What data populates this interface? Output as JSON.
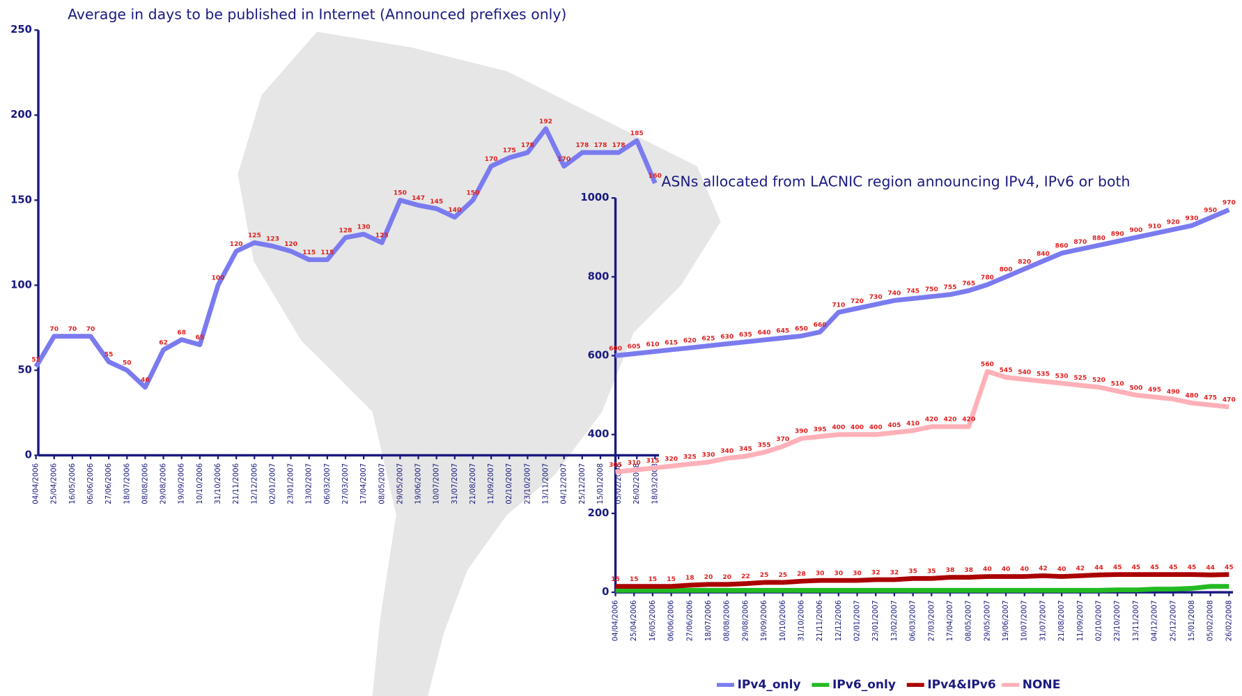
{
  "chart_data": [
    {
      "type": "line",
      "title": "Average in days to be published in Internet  (Announced prefixes only)",
      "categories": [
        "04/04/2006",
        "25/04/2006",
        "16/05/2006",
        "06/06/2006",
        "27/06/2006",
        "18/07/2006",
        "08/08/2006",
        "29/08/2006",
        "19/09/2006",
        "10/10/2006",
        "31/10/2006",
        "21/11/2006",
        "12/12/2006",
        "02/01/2007",
        "23/01/2007",
        "13/02/2007",
        "06/03/2007",
        "27/03/2007",
        "17/04/2007",
        "08/05/2007",
        "29/05/2007",
        "19/06/2007",
        "10/07/2007",
        "31/07/2007",
        "21/08/2007",
        "11/09/2007",
        "02/10/2007",
        "23/10/2007",
        "13/11/2007",
        "04/12/2007",
        "25/12/2007",
        "15/01/2008",
        "05/02/2008",
        "26/02/2008",
        "18/03/2008"
      ],
      "values": [
        52,
        70,
        70,
        70,
        55,
        50,
        40,
        62,
        68,
        65,
        100,
        120,
        125,
        123,
        120,
        115,
        115,
        128,
        130,
        125,
        150,
        147,
        145,
        140,
        150,
        170,
        175,
        178,
        192,
        170,
        178,
        178,
        178,
        185,
        160
      ],
      "color": "#7b7bf0",
      "ylim": [
        0,
        250
      ],
      "yticks": [
        0,
        50,
        100,
        150,
        200,
        250
      ]
    },
    {
      "type": "line",
      "title": "ASNs allocated from LACNIC region announcing IPv4, IPv6 or both",
      "categories": [
        "04/04/2006",
        "25/04/2006",
        "16/05/2006",
        "06/06/2006",
        "27/06/2006",
        "18/07/2006",
        "08/08/2006",
        "29/08/2006",
        "19/09/2006",
        "10/10/2006",
        "31/10/2006",
        "21/11/2006",
        "12/12/2006",
        "02/01/2007",
        "23/01/2007",
        "13/02/2007",
        "06/03/2007",
        "27/03/2007",
        "17/04/2007",
        "08/05/2007",
        "29/05/2007",
        "19/06/2007",
        "10/07/2007",
        "31/07/2007",
        "21/08/2007",
        "11/09/2007",
        "02/10/2007",
        "23/10/2007",
        "13/11/2007",
        "04/12/2007",
        "25/12/2007",
        "15/01/2008",
        "05/02/2008",
        "26/02/2008"
      ],
      "series": [
        {
          "name": "IPv4_only",
          "color": "#7b7bf0",
          "values": [
            600,
            605,
            610,
            615,
            620,
            625,
            630,
            635,
            640,
            645,
            650,
            660,
            710,
            720,
            730,
            740,
            745,
            750,
            755,
            765,
            780,
            800,
            820,
            840,
            860,
            870,
            880,
            890,
            900,
            910,
            920,
            930,
            950,
            970
          ]
        },
        {
          "name": "IPv6_only",
          "color": "#22bb22",
          "values": [
            5,
            5,
            5,
            5,
            5,
            5,
            5,
            5,
            5,
            5,
            5,
            5,
            5,
            5,
            5,
            5,
            5,
            5,
            5,
            5,
            5,
            5,
            5,
            5,
            5,
            5,
            5,
            6,
            6,
            8,
            8,
            10,
            15,
            15
          ]
        },
        {
          "name": "IPv4&IPv6",
          "color": "#aa0000",
          "values": [
            15,
            15,
            15,
            15,
            18,
            20,
            20,
            22,
            25,
            25,
            28,
            30,
            30,
            30,
            32,
            32,
            35,
            35,
            38,
            38,
            40,
            40,
            40,
            42,
            40,
            42,
            44,
            45,
            45,
            45,
            45,
            45,
            44,
            45
          ]
        },
        {
          "name": "NONE",
          "color": "#ffb0b8",
          "values": [
            305,
            310,
            315,
            320,
            325,
            330,
            340,
            345,
            355,
            370,
            390,
            395,
            400,
            400,
            400,
            405,
            410,
            420,
            420,
            420,
            560,
            545,
            540,
            535,
            530,
            525,
            520,
            510,
            500,
            495,
            490,
            480,
            475,
            470
          ]
        }
      ],
      "ylim": [
        0,
        1000
      ],
      "yticks": [
        0,
        200,
        400,
        600,
        800,
        1000
      ]
    }
  ]
}
